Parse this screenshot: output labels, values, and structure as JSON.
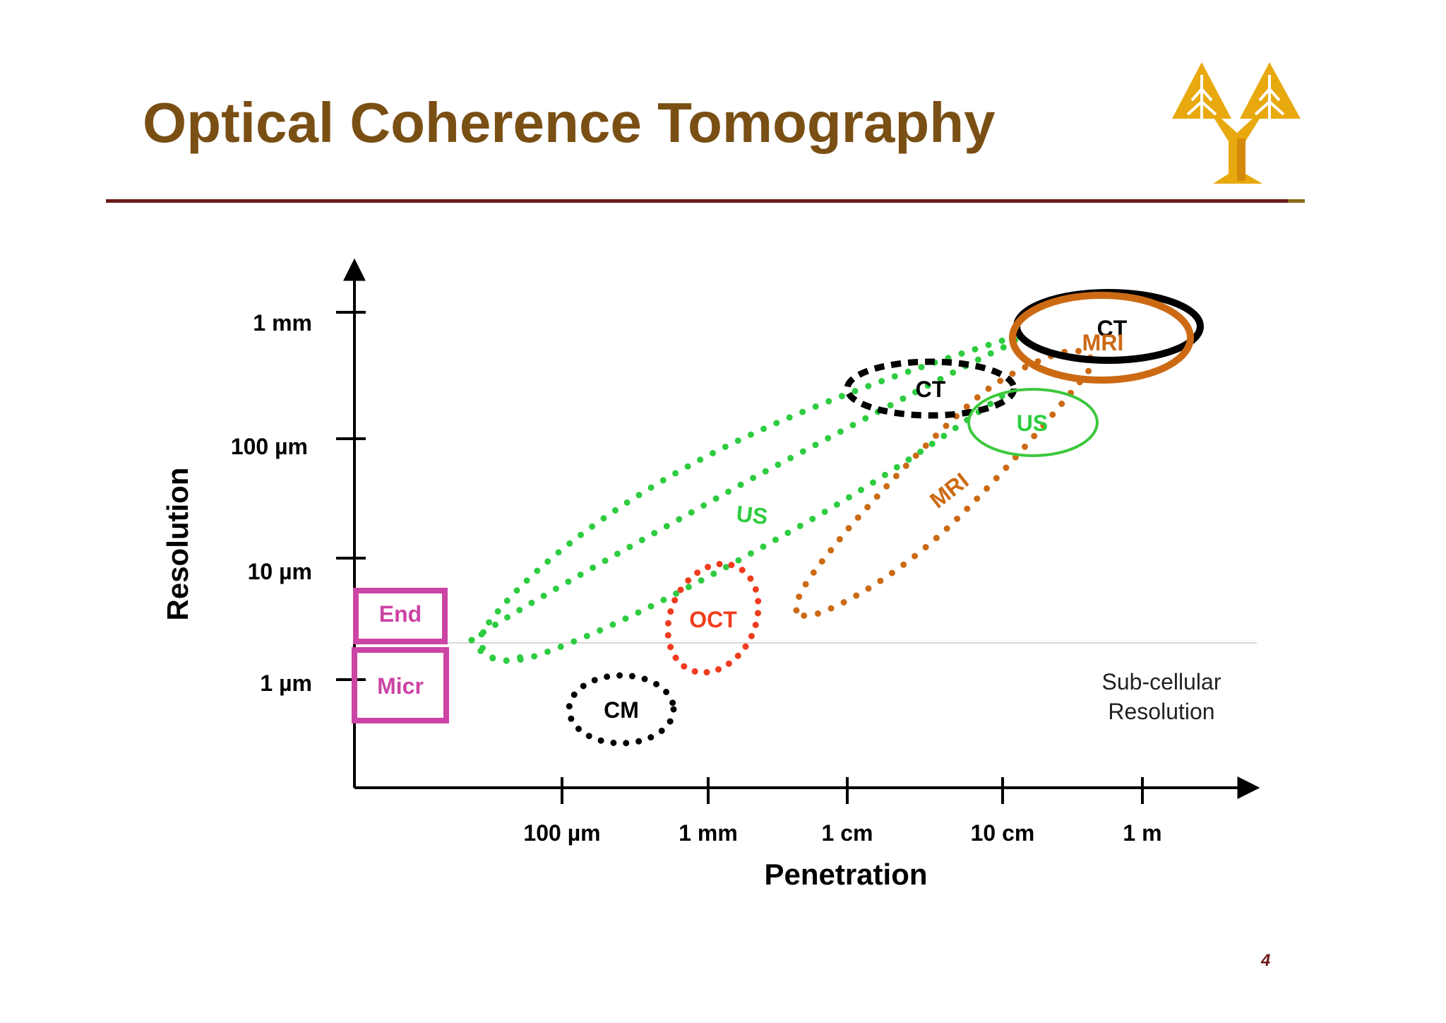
{
  "slide": {
    "title": "Optical Coherence Tomography",
    "page_number": "4",
    "colors": {
      "title": "#7a4f14",
      "rule": "#6b1a1a",
      "logo": "#e8a90f"
    },
    "logo_icon": "twin-tree-logo-icon"
  },
  "chart_data": {
    "type": "scatter",
    "title": "",
    "xlabel": "Penetration",
    "ylabel": "Resolution",
    "x_scale": "log",
    "y_scale": "log",
    "x_ticks": [
      "100 µm",
      "1 mm",
      "1 cm",
      "10 cm",
      "1 m"
    ],
    "y_ticks": [
      "1 µm",
      "10 µm",
      "100 µm",
      "1 mm"
    ],
    "grid": false,
    "reference_line": {
      "label_line1": "Sub-cellular",
      "label_line2": "Resolution",
      "style": "faint horizontal line"
    },
    "regions": [
      {
        "name": "CM",
        "style": "dotted",
        "color": "#000000",
        "label_color": "#000000"
      },
      {
        "name": "OCT",
        "style": "dotted",
        "color": "#f03c1e",
        "label_color": "#f03c1e"
      },
      {
        "name": "US",
        "style": "dotted",
        "color": "#2ecc40",
        "label_color": "#2ecc40"
      },
      {
        "name": "MRI",
        "style": "dotted",
        "color": "#cc6a14",
        "label_color": "#cc6a14"
      },
      {
        "name": "CT",
        "style": "dashed",
        "color": "#000000",
        "label_color": "#000000"
      },
      {
        "name": "US",
        "style": "solid",
        "color": "#3cc83c",
        "label_color": "#2ecc40"
      },
      {
        "name": "CT",
        "style": "solid",
        "color": "#000000",
        "label_color": "#000000"
      },
      {
        "name": "MRI",
        "style": "solid",
        "color": "#cc6a14",
        "label_color": "#cc6a14"
      }
    ],
    "boxes": [
      {
        "label": "End",
        "color": "#cc44a4"
      },
      {
        "label": "Micr",
        "color": "#cc44a4"
      }
    ]
  }
}
